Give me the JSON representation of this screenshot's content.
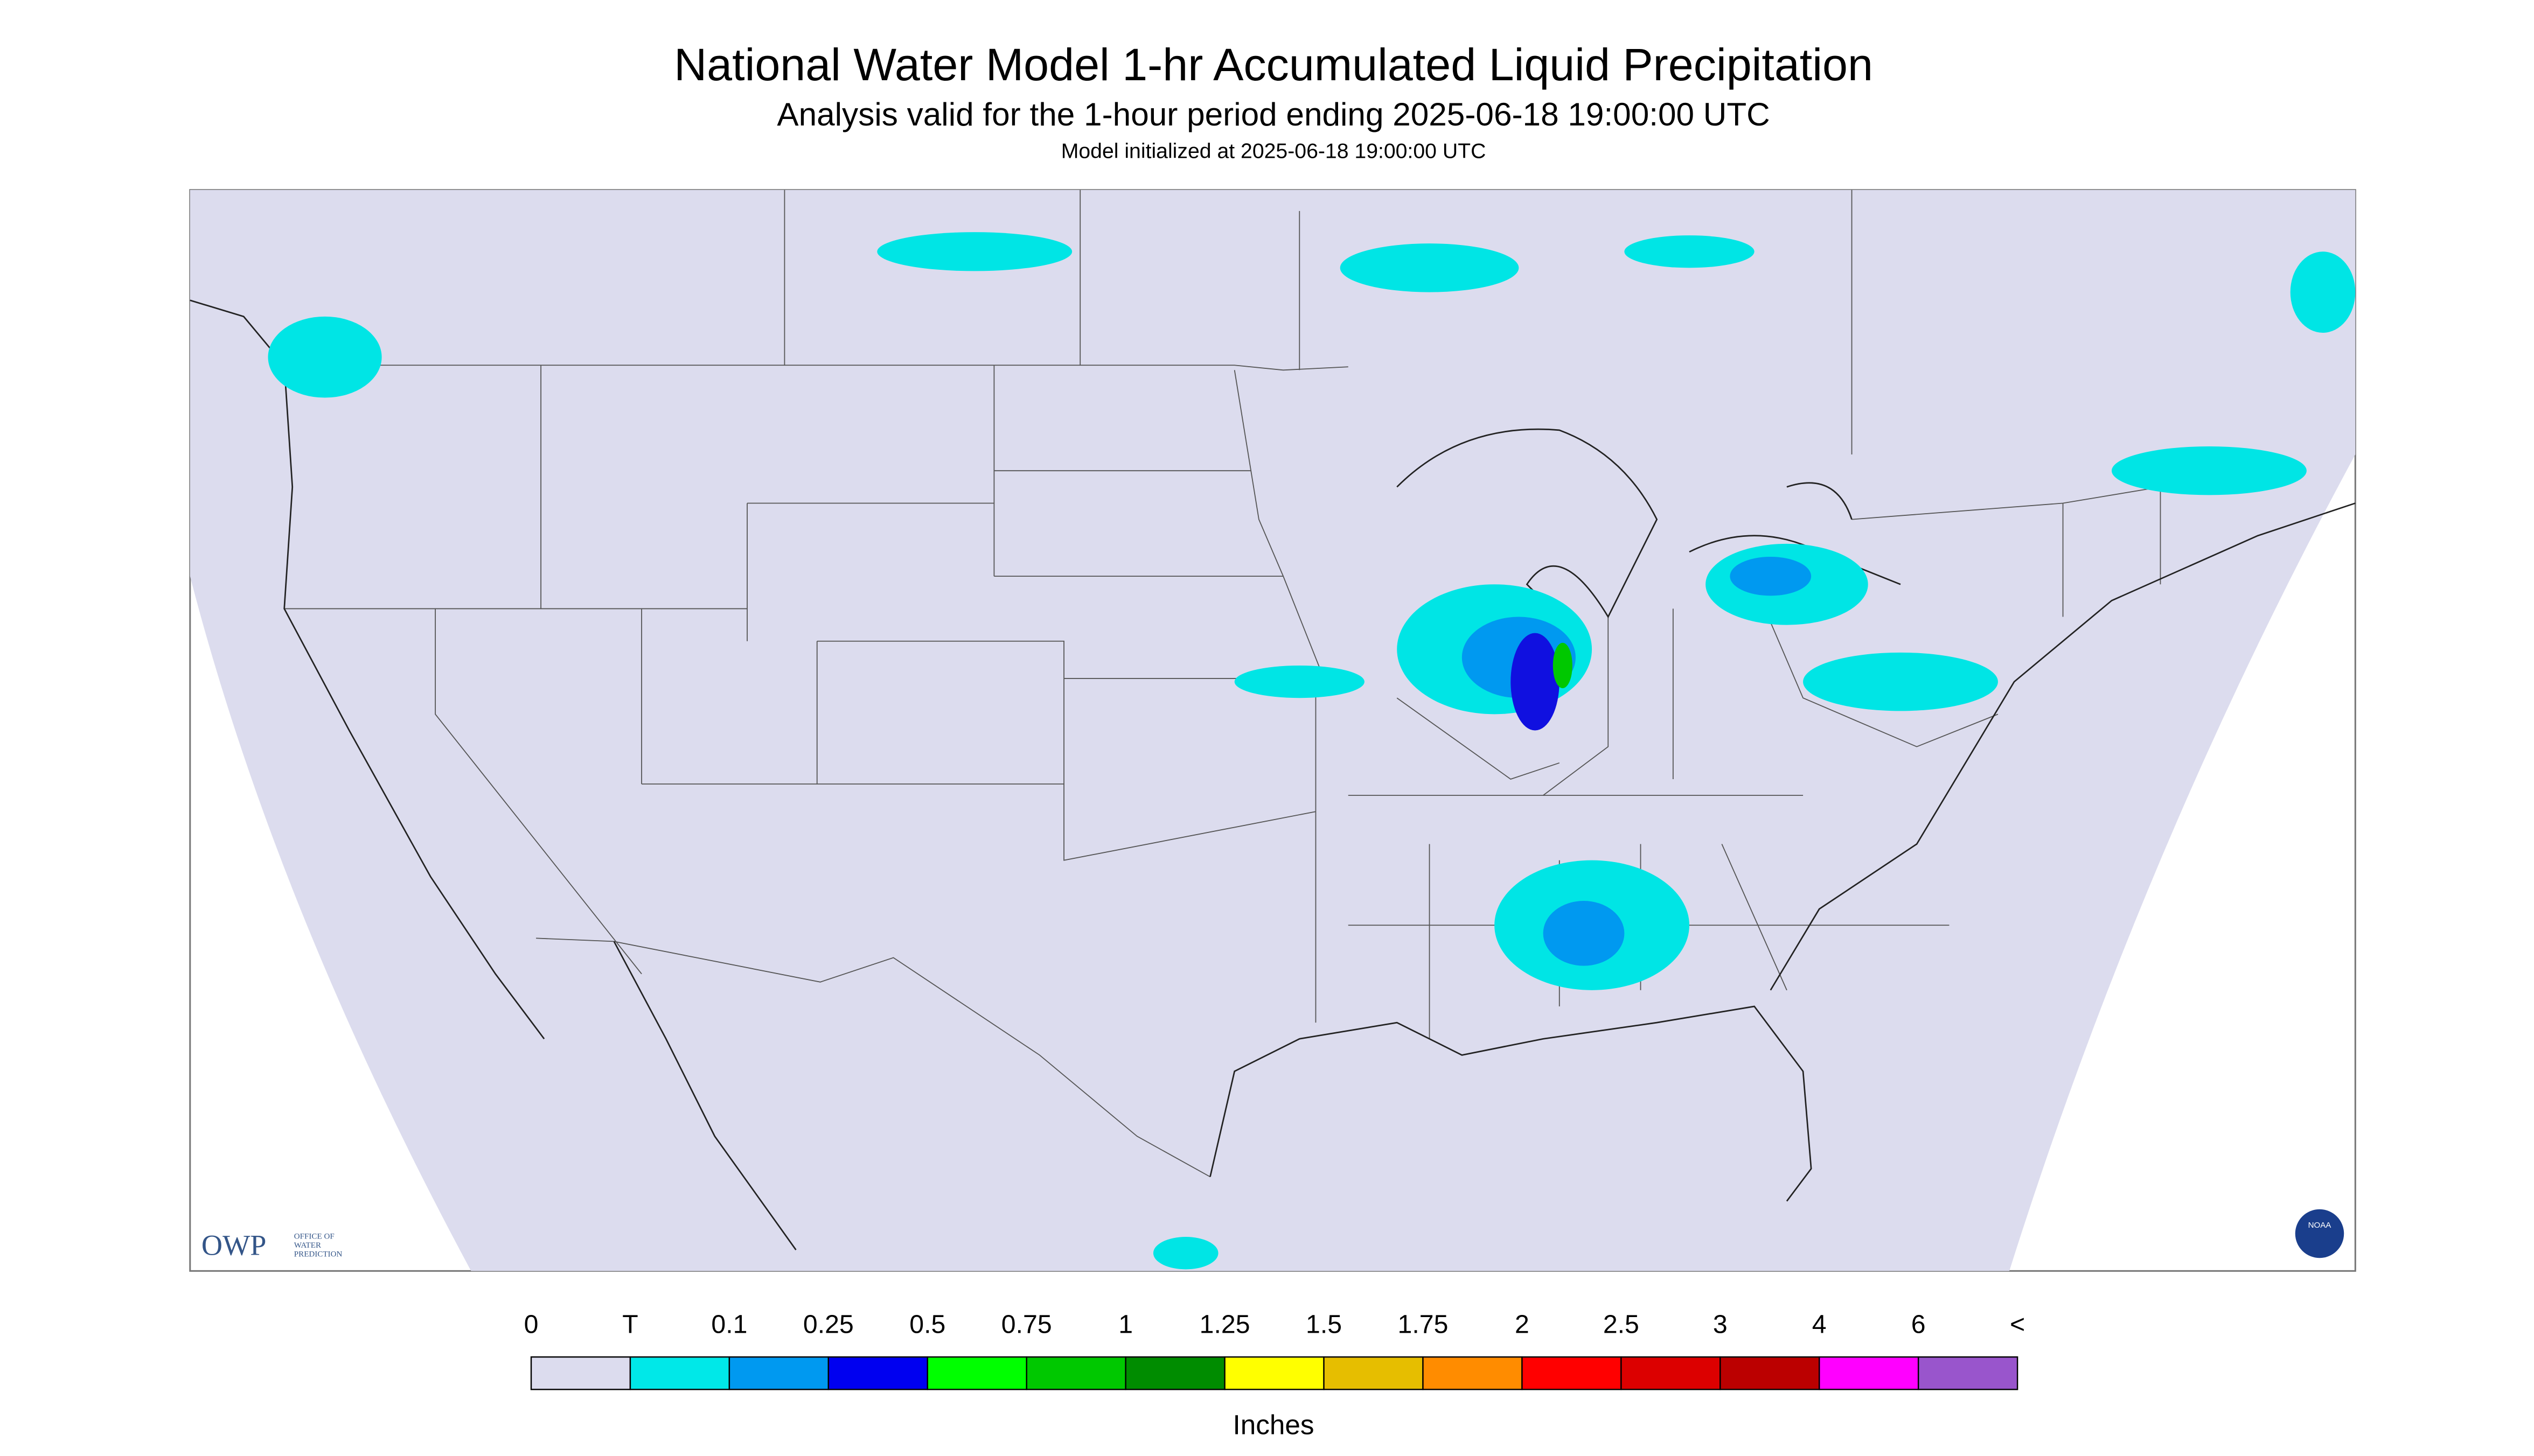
{
  "title": "National Water Model 1-hr Accumulated Liquid Precipitation",
  "subtitle": "Analysis valid for the 1-hour period ending 2025-06-18 19:00:00 UTC",
  "init_line": "Model initialized at 2025-06-18 19:00:00 UTC",
  "legend": {
    "labels": [
      "0",
      "T",
      "0.1",
      "0.25",
      "0.5",
      "0.75",
      "1",
      "1.25",
      "1.5",
      "1.75",
      "2",
      "2.5",
      "3",
      "4",
      "6",
      "<"
    ],
    "colors": [
      "#dcdcee",
      "#00e8e8",
      "#0099f0",
      "#0000f0",
      "#00ff00",
      "#00c800",
      "#008c00",
      "#ffff00",
      "#e6be00",
      "#ff8c00",
      "#ff0000",
      "#dc0000",
      "#bb0000",
      "#ff00ff",
      "#9955cc"
    ],
    "units": "Inches"
  },
  "logo": {
    "name": "OWP",
    "lines": [
      "OFFICE OF",
      "WATER",
      "PREDICTION"
    ],
    "agency": "NOAA"
  }
}
